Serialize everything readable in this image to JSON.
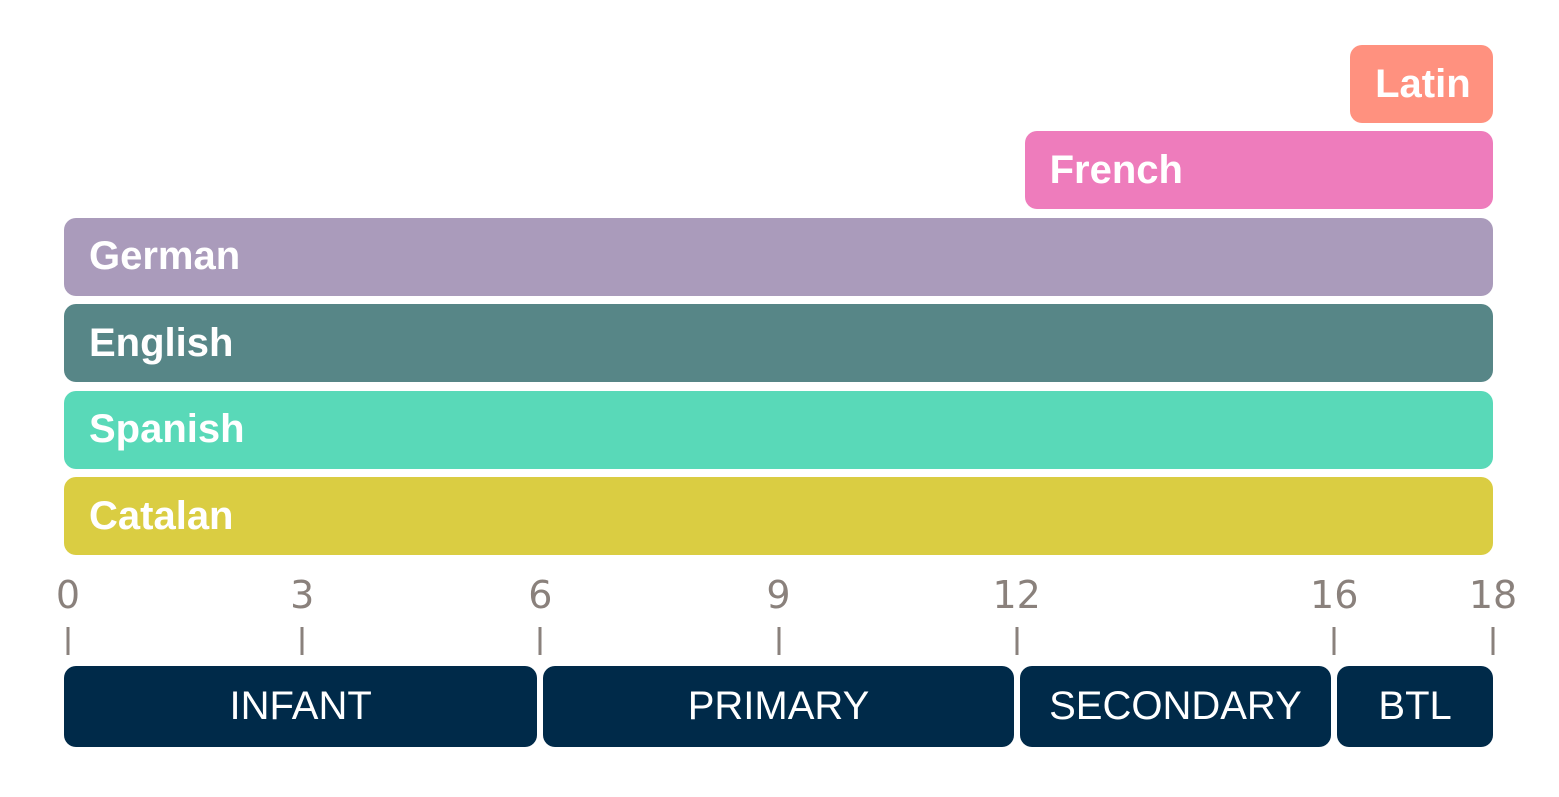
{
  "colors": {
    "text_on_bar": "#ffffff",
    "axis": "#8a817c",
    "stage_bg": "#002a49"
  },
  "languages": [
    {
      "label": "Latin",
      "start_age": 16.2,
      "end_age": 18,
      "color": "#ff917f"
    },
    {
      "label": "French",
      "start_age": 12.1,
      "end_age": 18,
      "color": "#ee7cbc"
    },
    {
      "label": "German",
      "start_age": 0,
      "end_age": 18,
      "color": "#aa9bbb"
    },
    {
      "label": "English",
      "start_age": 0,
      "end_age": 18,
      "color": "#578687"
    },
    {
      "label": "Spanish",
      "start_age": 0,
      "end_age": 18,
      "color": "#59d9b8"
    },
    {
      "label": "Catalan",
      "start_age": 0,
      "end_age": 18,
      "color": "#dacd42"
    }
  ],
  "axis": {
    "ticks": [
      {
        "value": 0,
        "label": "0"
      },
      {
        "value": 3,
        "label": "3"
      },
      {
        "value": 6,
        "label": "6"
      },
      {
        "value": 9,
        "label": "9"
      },
      {
        "value": 12,
        "label": "12"
      },
      {
        "value": 16,
        "label": "16"
      },
      {
        "value": 18,
        "label": "18"
      }
    ]
  },
  "stages": [
    {
      "label": "INFANT",
      "start_age": 0,
      "end_age": 6
    },
    {
      "label": "PRIMARY",
      "start_age": 6,
      "end_age": 12
    },
    {
      "label": "SECONDARY",
      "start_age": 12,
      "end_age": 16
    },
    {
      "label": "BTL",
      "start_age": 16,
      "end_age": 18
    }
  ]
}
